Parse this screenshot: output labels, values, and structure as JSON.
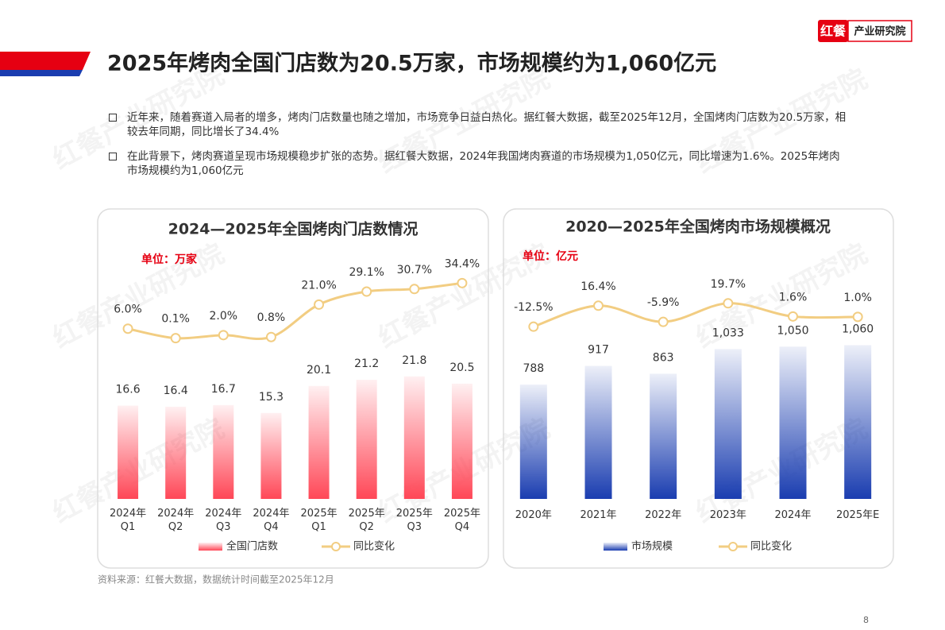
{
  "logo": {
    "brand": "红餐",
    "institute": "产业研究院"
  },
  "header": {
    "title": "2025年烤肉全国门店数为20.5万家，市场规模约为1,060亿元"
  },
  "bullets": [
    "近年来，随着赛道入局者的增多，烤肉门店数量也随之增加，市场竞争日益白热化。据红餐大数据，截至2025年12月，全国烤肉门店数为20.5万家，相较去年同期，同比增长了34.4%",
    "在此背景下，烤肉赛道呈现市场规模稳步扩张的态势。据红餐大数据，2024年我国烤肉赛道的市场规模为1,050亿元，同比增速为1.6%。2025年烤肉市场规模约为1,060亿元"
  ],
  "watermark": "红餐产业研究院",
  "chart_data": [
    {
      "type": "combo",
      "title": "2024—2025年全国烤肉门店数情况",
      "unit": "单位：万家",
      "categories": [
        "2024年\nQ1",
        "2024年\nQ2",
        "2024年\nQ3",
        "2024年\nQ4",
        "2025年\nQ1",
        "2025年\nQ2",
        "2025年\nQ3",
        "2025年\nQ4"
      ],
      "ylim": [
        0,
        40
      ],
      "y2lim": [
        -100,
        40
      ],
      "series": [
        {
          "name": "全国门店数",
          "type": "bar",
          "color": "#ff4757",
          "values": [
            16.6,
            16.4,
            16.7,
            15.3,
            20.1,
            21.2,
            21.8,
            20.5
          ]
        },
        {
          "name": "同比变化",
          "type": "line",
          "axis": "y2",
          "color": "#f2cd82",
          "values": [
            6.0,
            0.1,
            2.0,
            0.8,
            21.0,
            29.1,
            30.7,
            34.4
          ],
          "value_labels": [
            "6.0%",
            "0.1%",
            "2.0%",
            "0.8%",
            "21.0%",
            "29.1%",
            "30.7%",
            "34.4%"
          ]
        }
      ]
    },
    {
      "type": "combo",
      "title": "2020—2025年全国烤肉市场规模概况",
      "unit": "单位：亿元",
      "categories": [
        "2020年",
        "2021年",
        "2022年",
        "2023年",
        "2024年",
        "2025年E"
      ],
      "ylim": [
        0,
        1550
      ],
      "y2lim": [
        -250,
        60
      ],
      "series": [
        {
          "name": "市场规模",
          "type": "bar",
          "color": "#1a3db0",
          "values": [
            788,
            917,
            863,
            1033,
            1050,
            1060
          ],
          "value_labels": [
            "788",
            "917",
            "863",
            "1,033",
            "1,050",
            "1,060"
          ]
        },
        {
          "name": "同比变化",
          "type": "line",
          "axis": "y2",
          "color": "#f2cd82",
          "values": [
            -12.5,
            16.4,
            -5.9,
            19.7,
            1.6,
            1.0
          ],
          "value_labels": [
            "-12.5%",
            "16.4%",
            "-5.9%",
            "19.7%",
            "1.6%",
            "1.0%"
          ]
        }
      ]
    }
  ],
  "source": "资料来源：红餐大数据，数据统计时间截至2025年12月",
  "page_number": "8"
}
